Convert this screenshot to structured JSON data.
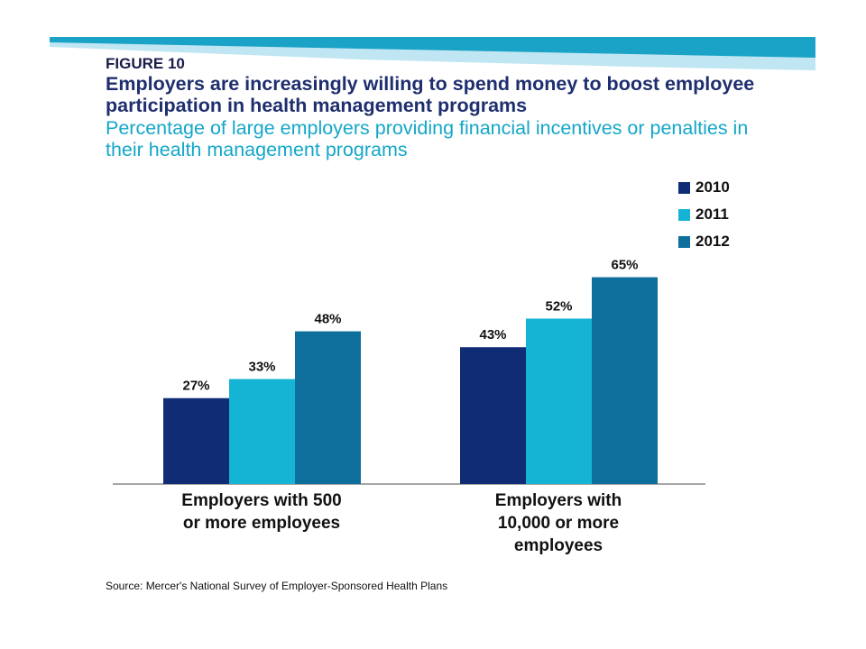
{
  "figure_label": "FIGURE 10",
  "title": "Employers are increasingly willing to spend money to boost employee participation in health management programs",
  "subtitle": "Percentage of large employers providing financial incentives or penalties in their health management programs",
  "source": "Source: Mercer's National Survey of Employer-Sponsored Health Plans",
  "colors": {
    "banner_dark": "#1aa3c6",
    "banner_light": "#bfe6f2",
    "title": "#1e2e6e",
    "subtitle": "#14a7c8"
  },
  "chart_data": {
    "type": "bar",
    "title": "Percentage of large employers providing financial incentives or penalties in their health management programs",
    "xlabel": "",
    "ylabel": "",
    "ylim": [
      0,
      100
    ],
    "grid": false,
    "legend_position": "top-right",
    "categories": [
      "Employers with 500 or more employees",
      "Employers with 10,000 or more employees"
    ],
    "category_lines": [
      [
        "Employers with 500",
        "or more employees"
      ],
      [
        "Employers with",
        "10,000 or more",
        "employees"
      ]
    ],
    "series": [
      {
        "name": "2010",
        "color": "#102c74",
        "values": [
          27,
          43
        ]
      },
      {
        "name": "2011",
        "color": "#16b4d4",
        "values": [
          33,
          52
        ]
      },
      {
        "name": "2012",
        "color": "#0e6f9c",
        "values": [
          48,
          65
        ]
      }
    ],
    "value_suffix": "%"
  }
}
